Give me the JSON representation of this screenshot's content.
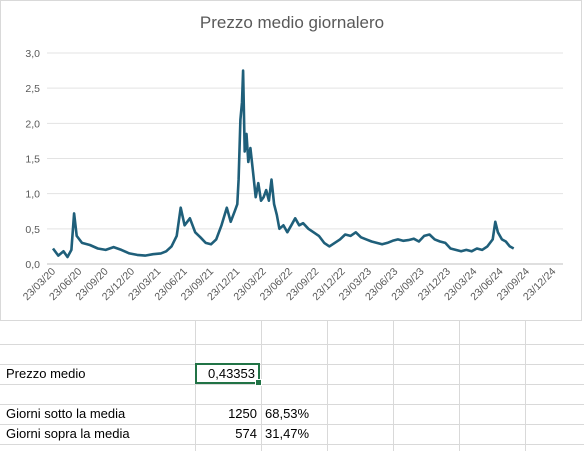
{
  "chart_data": {
    "type": "line",
    "title": "Prezzo medio giornalero",
    "ylim": [
      0,
      3.0
    ],
    "yticks": [
      "0,0",
      "0,5",
      "1,0",
      "1,5",
      "2,0",
      "2,5",
      "3,0"
    ],
    "xticks": [
      "23/03/20",
      "23/06/20",
      "23/09/20",
      "23/12/20",
      "23/03/21",
      "23/06/21",
      "23/09/21",
      "23/12/21",
      "23/03/22",
      "23/06/22",
      "23/09/22",
      "23/12/22",
      "23/03/23",
      "23/06/23",
      "23/09/23",
      "23/12/23",
      "23/03/24",
      "23/06/24",
      "23/09/24",
      "23/12/24"
    ],
    "grid": true,
    "legend": "none",
    "line_color": "#1f5f7a",
    "series": [
      {
        "points": [
          [
            0,
            0.22
          ],
          [
            0.2,
            0.12
          ],
          [
            0.4,
            0.18
          ],
          [
            0.55,
            0.1
          ],
          [
            0.7,
            0.2
          ],
          [
            0.8,
            0.72
          ],
          [
            0.9,
            0.4
          ],
          [
            1.1,
            0.3
          ],
          [
            1.4,
            0.27
          ],
          [
            1.7,
            0.22
          ],
          [
            2.0,
            0.2
          ],
          [
            2.3,
            0.24
          ],
          [
            2.6,
            0.2
          ],
          [
            2.9,
            0.15
          ],
          [
            3.2,
            0.13
          ],
          [
            3.5,
            0.12
          ],
          [
            3.8,
            0.14
          ],
          [
            4.1,
            0.15
          ],
          [
            4.3,
            0.18
          ],
          [
            4.5,
            0.25
          ],
          [
            4.7,
            0.4
          ],
          [
            4.85,
            0.8
          ],
          [
            5.0,
            0.55
          ],
          [
            5.2,
            0.65
          ],
          [
            5.4,
            0.45
          ],
          [
            5.6,
            0.38
          ],
          [
            5.8,
            0.3
          ],
          [
            6.0,
            0.28
          ],
          [
            6.2,
            0.35
          ],
          [
            6.4,
            0.55
          ],
          [
            6.6,
            0.8
          ],
          [
            6.75,
            0.6
          ],
          [
            6.9,
            0.75
          ],
          [
            7.0,
            0.85
          ],
          [
            7.05,
            1.2
          ],
          [
            7.12,
            2.05
          ],
          [
            7.18,
            2.3
          ],
          [
            7.22,
            2.75
          ],
          [
            7.28,
            1.6
          ],
          [
            7.35,
            1.85
          ],
          [
            7.42,
            1.45
          ],
          [
            7.5,
            1.65
          ],
          [
            7.6,
            1.3
          ],
          [
            7.7,
            0.95
          ],
          [
            7.8,
            1.15
          ],
          [
            7.9,
            0.9
          ],
          [
            8.0,
            0.95
          ],
          [
            8.1,
            1.05
          ],
          [
            8.2,
            0.9
          ],
          [
            8.3,
            1.2
          ],
          [
            8.4,
            0.85
          ],
          [
            8.5,
            0.7
          ],
          [
            8.6,
            0.5
          ],
          [
            8.75,
            0.55
          ],
          [
            8.9,
            0.45
          ],
          [
            9.05,
            0.55
          ],
          [
            9.2,
            0.65
          ],
          [
            9.35,
            0.55
          ],
          [
            9.5,
            0.58
          ],
          [
            9.7,
            0.5
          ],
          [
            9.9,
            0.45
          ],
          [
            10.1,
            0.4
          ],
          [
            10.3,
            0.3
          ],
          [
            10.5,
            0.25
          ],
          [
            10.7,
            0.3
          ],
          [
            10.9,
            0.35
          ],
          [
            11.1,
            0.42
          ],
          [
            11.3,
            0.4
          ],
          [
            11.5,
            0.45
          ],
          [
            11.7,
            0.38
          ],
          [
            11.9,
            0.35
          ],
          [
            12.1,
            0.32
          ],
          [
            12.3,
            0.3
          ],
          [
            12.5,
            0.28
          ],
          [
            12.7,
            0.3
          ],
          [
            12.9,
            0.33
          ],
          [
            13.1,
            0.35
          ],
          [
            13.3,
            0.33
          ],
          [
            13.5,
            0.34
          ],
          [
            13.7,
            0.36
          ],
          [
            13.9,
            0.32
          ],
          [
            14.1,
            0.4
          ],
          [
            14.3,
            0.42
          ],
          [
            14.5,
            0.35
          ],
          [
            14.7,
            0.32
          ],
          [
            14.9,
            0.3
          ],
          [
            15.1,
            0.22
          ],
          [
            15.3,
            0.2
          ],
          [
            15.5,
            0.18
          ],
          [
            15.7,
            0.2
          ],
          [
            15.9,
            0.18
          ],
          [
            16.1,
            0.22
          ],
          [
            16.3,
            0.2
          ],
          [
            16.5,
            0.25
          ],
          [
            16.7,
            0.35
          ],
          [
            16.8,
            0.6
          ],
          [
            16.9,
            0.45
          ],
          [
            17.05,
            0.35
          ],
          [
            17.2,
            0.32
          ],
          [
            17.35,
            0.25
          ],
          [
            17.5,
            0.22
          ]
        ]
      }
    ]
  },
  "cells": {
    "prezzo_medio_label": "Prezzo medio",
    "prezzo_medio_value": "0,43353",
    "sotto_label": "Giorni sotto la media",
    "sotto_count": "1250",
    "sotto_pct": "68,53%",
    "sopra_label": "Giorni sopra la media",
    "sopra_count": "574",
    "sopra_pct": "31,47%"
  },
  "colors": {
    "selection": "#217346",
    "gridline": "#d9d9d9"
  }
}
